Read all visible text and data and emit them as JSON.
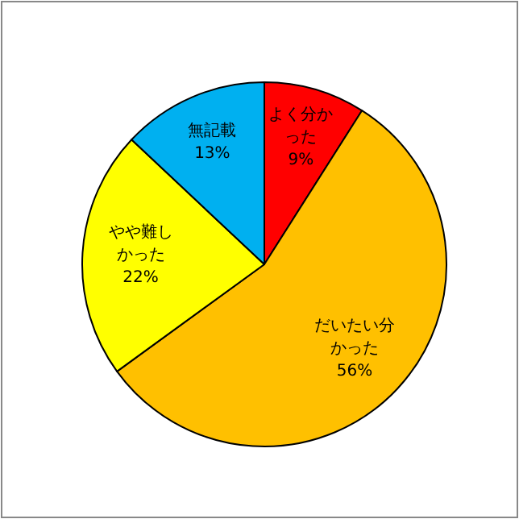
{
  "chart_data": {
    "type": "pie",
    "categories": [
      "よく分かった",
      "だいたい分かった",
      "やや難しかった",
      "無記載"
    ],
    "values": [
      9,
      56,
      22,
      13
    ],
    "colors": [
      "#ff0000",
      "#ffc000",
      "#ffff00",
      "#00b0f0"
    ],
    "value_labels": [
      "9%",
      "56%",
      "22%",
      "13%"
    ]
  }
}
